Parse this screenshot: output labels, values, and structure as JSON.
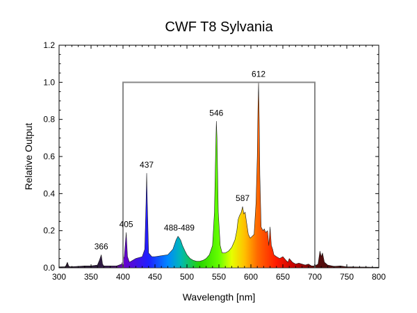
{
  "chart_data": {
    "type": "area",
    "title": "CWF T8 Sylvania",
    "xlabel": "Wavelength [nm]",
    "ylabel": "Relative Output",
    "xlim": [
      300,
      800
    ],
    "ylim": [
      0,
      1.2
    ],
    "xticks": [
      300,
      350,
      400,
      450,
      500,
      550,
      600,
      650,
      700,
      750,
      800
    ],
    "yticks": [
      0.0,
      0.2,
      0.4,
      0.6,
      0.8,
      1.0,
      1.2
    ],
    "x_tick_labels": [
      "300",
      "350",
      "400",
      "450",
      "500",
      "550",
      "600",
      "650",
      "700",
      "750",
      "800"
    ],
    "y_tick_labels": [
      "0.0",
      "0.2",
      "0.4",
      "0.6",
      "0.8",
      "1.0",
      "1.2"
    ],
    "grid": false,
    "fill": "visible-spectrum gradient",
    "reference_box": {
      "x": [
        400,
        700
      ],
      "y": [
        0,
        1.0
      ],
      "color": "#888888"
    },
    "annotations": [
      {
        "text": "366",
        "x": 366,
        "y": 0.07
      },
      {
        "text": "405",
        "x": 405,
        "y": 0.19
      },
      {
        "text": "437",
        "x": 437,
        "y": 0.51
      },
      {
        "text": "488-489",
        "x": 488,
        "y": 0.17
      },
      {
        "text": "546",
        "x": 546,
        "y": 0.79
      },
      {
        "text": "587",
        "x": 587,
        "y": 0.33
      },
      {
        "text": "612",
        "x": 612,
        "y": 1.0
      }
    ],
    "series": [
      {
        "x": [
          300,
          310,
          313,
          315,
          317,
          320,
          330,
          340,
          350,
          360,
          363,
          366,
          368,
          370,
          380,
          390,
          398,
          402,
          405,
          407,
          410,
          420,
          430,
          434,
          436,
          437,
          438,
          440,
          445,
          450,
          460,
          470,
          478,
          483,
          486,
          488,
          490,
          493,
          497,
          500,
          505,
          510,
          515,
          520,
          525,
          530,
          535,
          540,
          543,
          545,
          546,
          547,
          549,
          552,
          555,
          560,
          565,
          570,
          575,
          578,
          580,
          582,
          585,
          587,
          589,
          591,
          593,
          596,
          599,
          602,
          605,
          608,
          610,
          611,
          612,
          613,
          614,
          616,
          619,
          621,
          623,
          626,
          628,
          630,
          632,
          634,
          636,
          640,
          645,
          650,
          655,
          658,
          660,
          665,
          670,
          675,
          680,
          685,
          690,
          695,
          700,
          705,
          708,
          710,
          712,
          715,
          720,
          730,
          740,
          750,
          760,
          770,
          780,
          790,
          800
        ],
        "y": [
          0.005,
          0.006,
          0.03,
          0.01,
          0.006,
          0.006,
          0.008,
          0.01,
          0.01,
          0.015,
          0.04,
          0.07,
          0.02,
          0.01,
          0.01,
          0.01,
          0.02,
          0.06,
          0.19,
          0.06,
          0.03,
          0.05,
          0.06,
          0.1,
          0.35,
          0.51,
          0.35,
          0.08,
          0.06,
          0.06,
          0.065,
          0.07,
          0.1,
          0.15,
          0.17,
          0.16,
          0.15,
          0.12,
          0.09,
          0.07,
          0.05,
          0.04,
          0.035,
          0.035,
          0.04,
          0.05,
          0.07,
          0.12,
          0.3,
          0.65,
          0.79,
          0.7,
          0.3,
          0.12,
          0.08,
          0.08,
          0.09,
          0.11,
          0.15,
          0.2,
          0.26,
          0.28,
          0.3,
          0.33,
          0.29,
          0.3,
          0.25,
          0.18,
          0.16,
          0.17,
          0.18,
          0.35,
          0.6,
          0.85,
          1.0,
          0.8,
          0.5,
          0.22,
          0.2,
          0.21,
          0.19,
          0.2,
          0.12,
          0.22,
          0.12,
          0.1,
          0.07,
          0.06,
          0.05,
          0.06,
          0.04,
          0.03,
          0.05,
          0.03,
          0.02,
          0.025,
          0.02,
          0.015,
          0.02,
          0.01,
          0.01,
          0.02,
          0.09,
          0.06,
          0.08,
          0.03,
          0.015,
          0.008,
          0.01,
          0.005,
          0.005,
          0.004,
          0.004,
          0.003,
          0.003
        ]
      }
    ]
  }
}
